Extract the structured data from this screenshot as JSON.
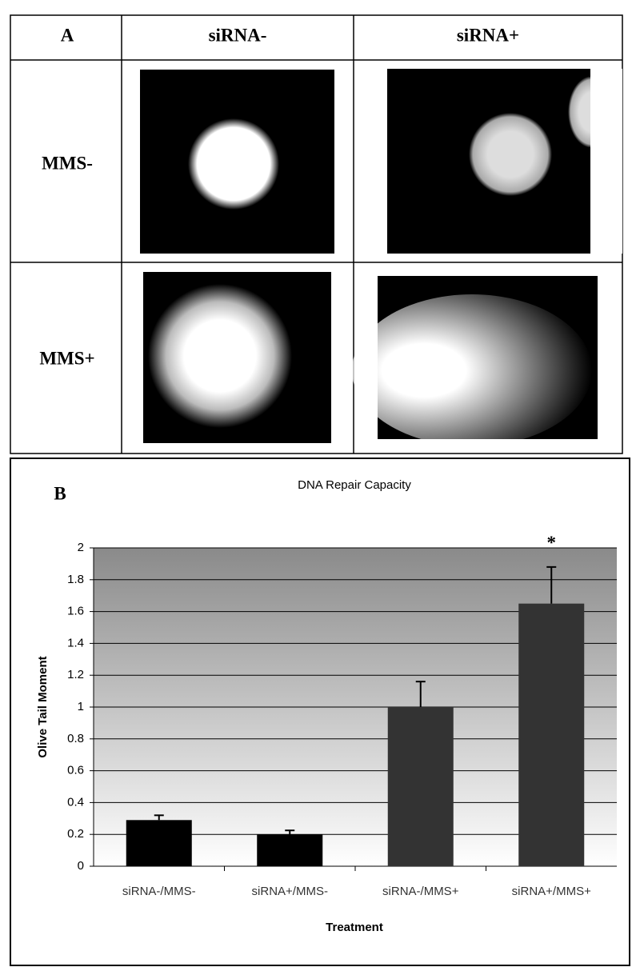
{
  "panel_a": {
    "label": "A",
    "columns": [
      "siRNA-",
      "siRNA+"
    ],
    "rows": [
      "MMS-",
      "MMS+"
    ]
  },
  "chart_data": {
    "type": "bar",
    "panel_label": "B",
    "title": "DNA Repair Capacity",
    "x_label": "Treatment",
    "y_label": "Olive Tail Moment",
    "categories": [
      "siRNA-/MMS-",
      "siRNA+/MMS-",
      "siRNA-/MMS+",
      "siRNA+/MMS+"
    ],
    "values": [
      0.29,
      0.2,
      1.0,
      1.65
    ],
    "errors": [
      0.03,
      0.025,
      0.16,
      0.23
    ],
    "colors": [
      "#000000",
      "#000000",
      "#333333",
      "#333333"
    ],
    "annotation": "*",
    "annotation_category": 3,
    "ylim": [
      0,
      2
    ],
    "yticks": [
      0,
      0.2,
      0.4,
      0.6,
      0.8,
      1,
      1.2,
      1.4,
      1.6,
      1.8,
      2
    ],
    "grid": true
  }
}
